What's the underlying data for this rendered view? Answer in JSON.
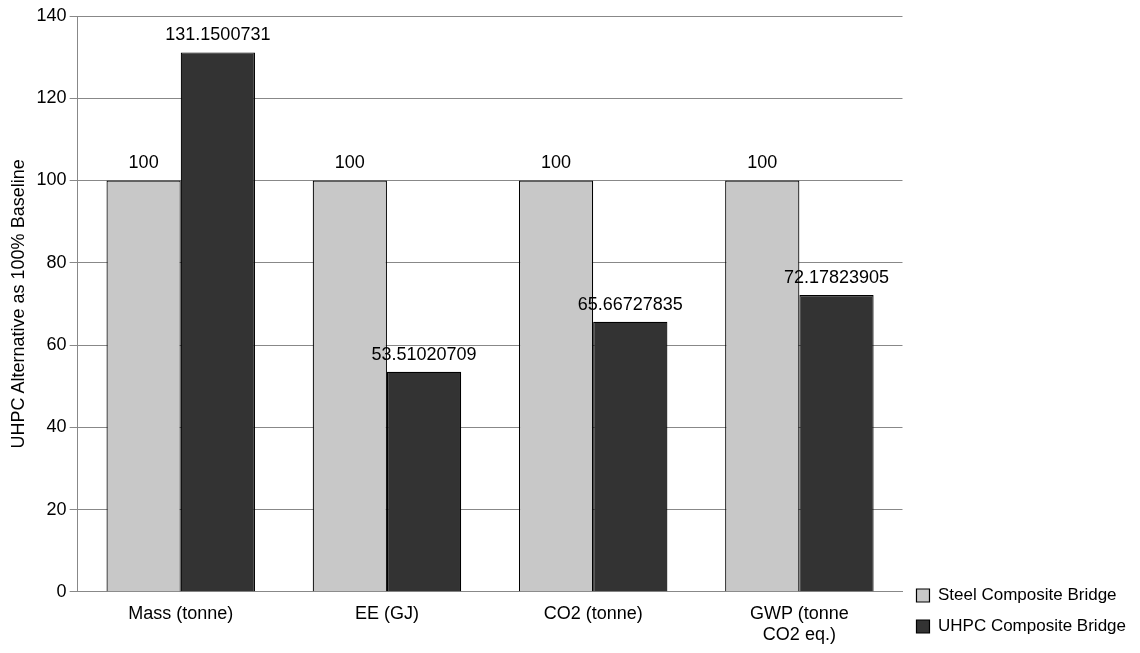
{
  "chart_data": {
    "type": "bar",
    "ylabel": "UHPC Alternative as 100% Baseline",
    "categories": [
      "Mass (tonne)",
      "EE (GJ)",
      "CO2 (tonne)",
      "GWP (tonne CO2 eq.)"
    ],
    "series": [
      {
        "name": "Steel Composite Bridge",
        "color": "#c8c8c8",
        "values": [
          100,
          100,
          100,
          100
        ]
      },
      {
        "name": "UHPC Composite Bridge",
        "color": "#333333",
        "values": [
          131.1500731,
          53.51020709,
          65.66727835,
          72.17823905
        ]
      }
    ],
    "ylim": [
      0,
      140
    ],
    "yticks": [
      0,
      20,
      40,
      60,
      80,
      100,
      120,
      140
    ],
    "grid": "y",
    "legend": "bottom right",
    "data_labels": true
  }
}
